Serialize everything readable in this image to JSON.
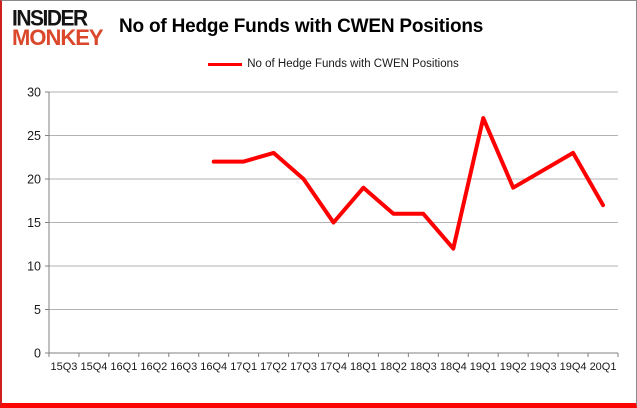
{
  "brand": {
    "line1": "INSIDER",
    "line2": "MONKEY"
  },
  "header": {
    "title": "No of Hedge Funds with CWEN Positions"
  },
  "legend": {
    "label": "No of Hedge Funds with CWEN Positions"
  },
  "colors": {
    "series": "#fe0000",
    "brand_black": "#141414",
    "brand_red": "#da472b",
    "grid": "#b3b3b3",
    "axis": "#808080",
    "tick_text": "#1a1a1a"
  },
  "chart_data": {
    "type": "line",
    "title": "No of Hedge Funds with CWEN Positions",
    "categories": [
      "15Q3",
      "15Q4",
      "16Q1",
      "16Q2",
      "16Q3",
      "16Q4",
      "17Q1",
      "17Q2",
      "17Q3",
      "17Q4",
      "18Q1",
      "18Q2",
      "18Q3",
      "18Q4",
      "19Q1",
      "19Q2",
      "19Q3",
      "19Q4",
      "20Q1"
    ],
    "series": [
      {
        "name": "No of Hedge Funds with CWEN Positions",
        "values": [
          null,
          null,
          null,
          null,
          null,
          22,
          22,
          23,
          20,
          15,
          19,
          16,
          16,
          12,
          27,
          19,
          21,
          23,
          17
        ]
      }
    ],
    "ylim": [
      0,
      30
    ],
    "ytick_step": 5,
    "grid": true,
    "legend_position": "top-center"
  }
}
